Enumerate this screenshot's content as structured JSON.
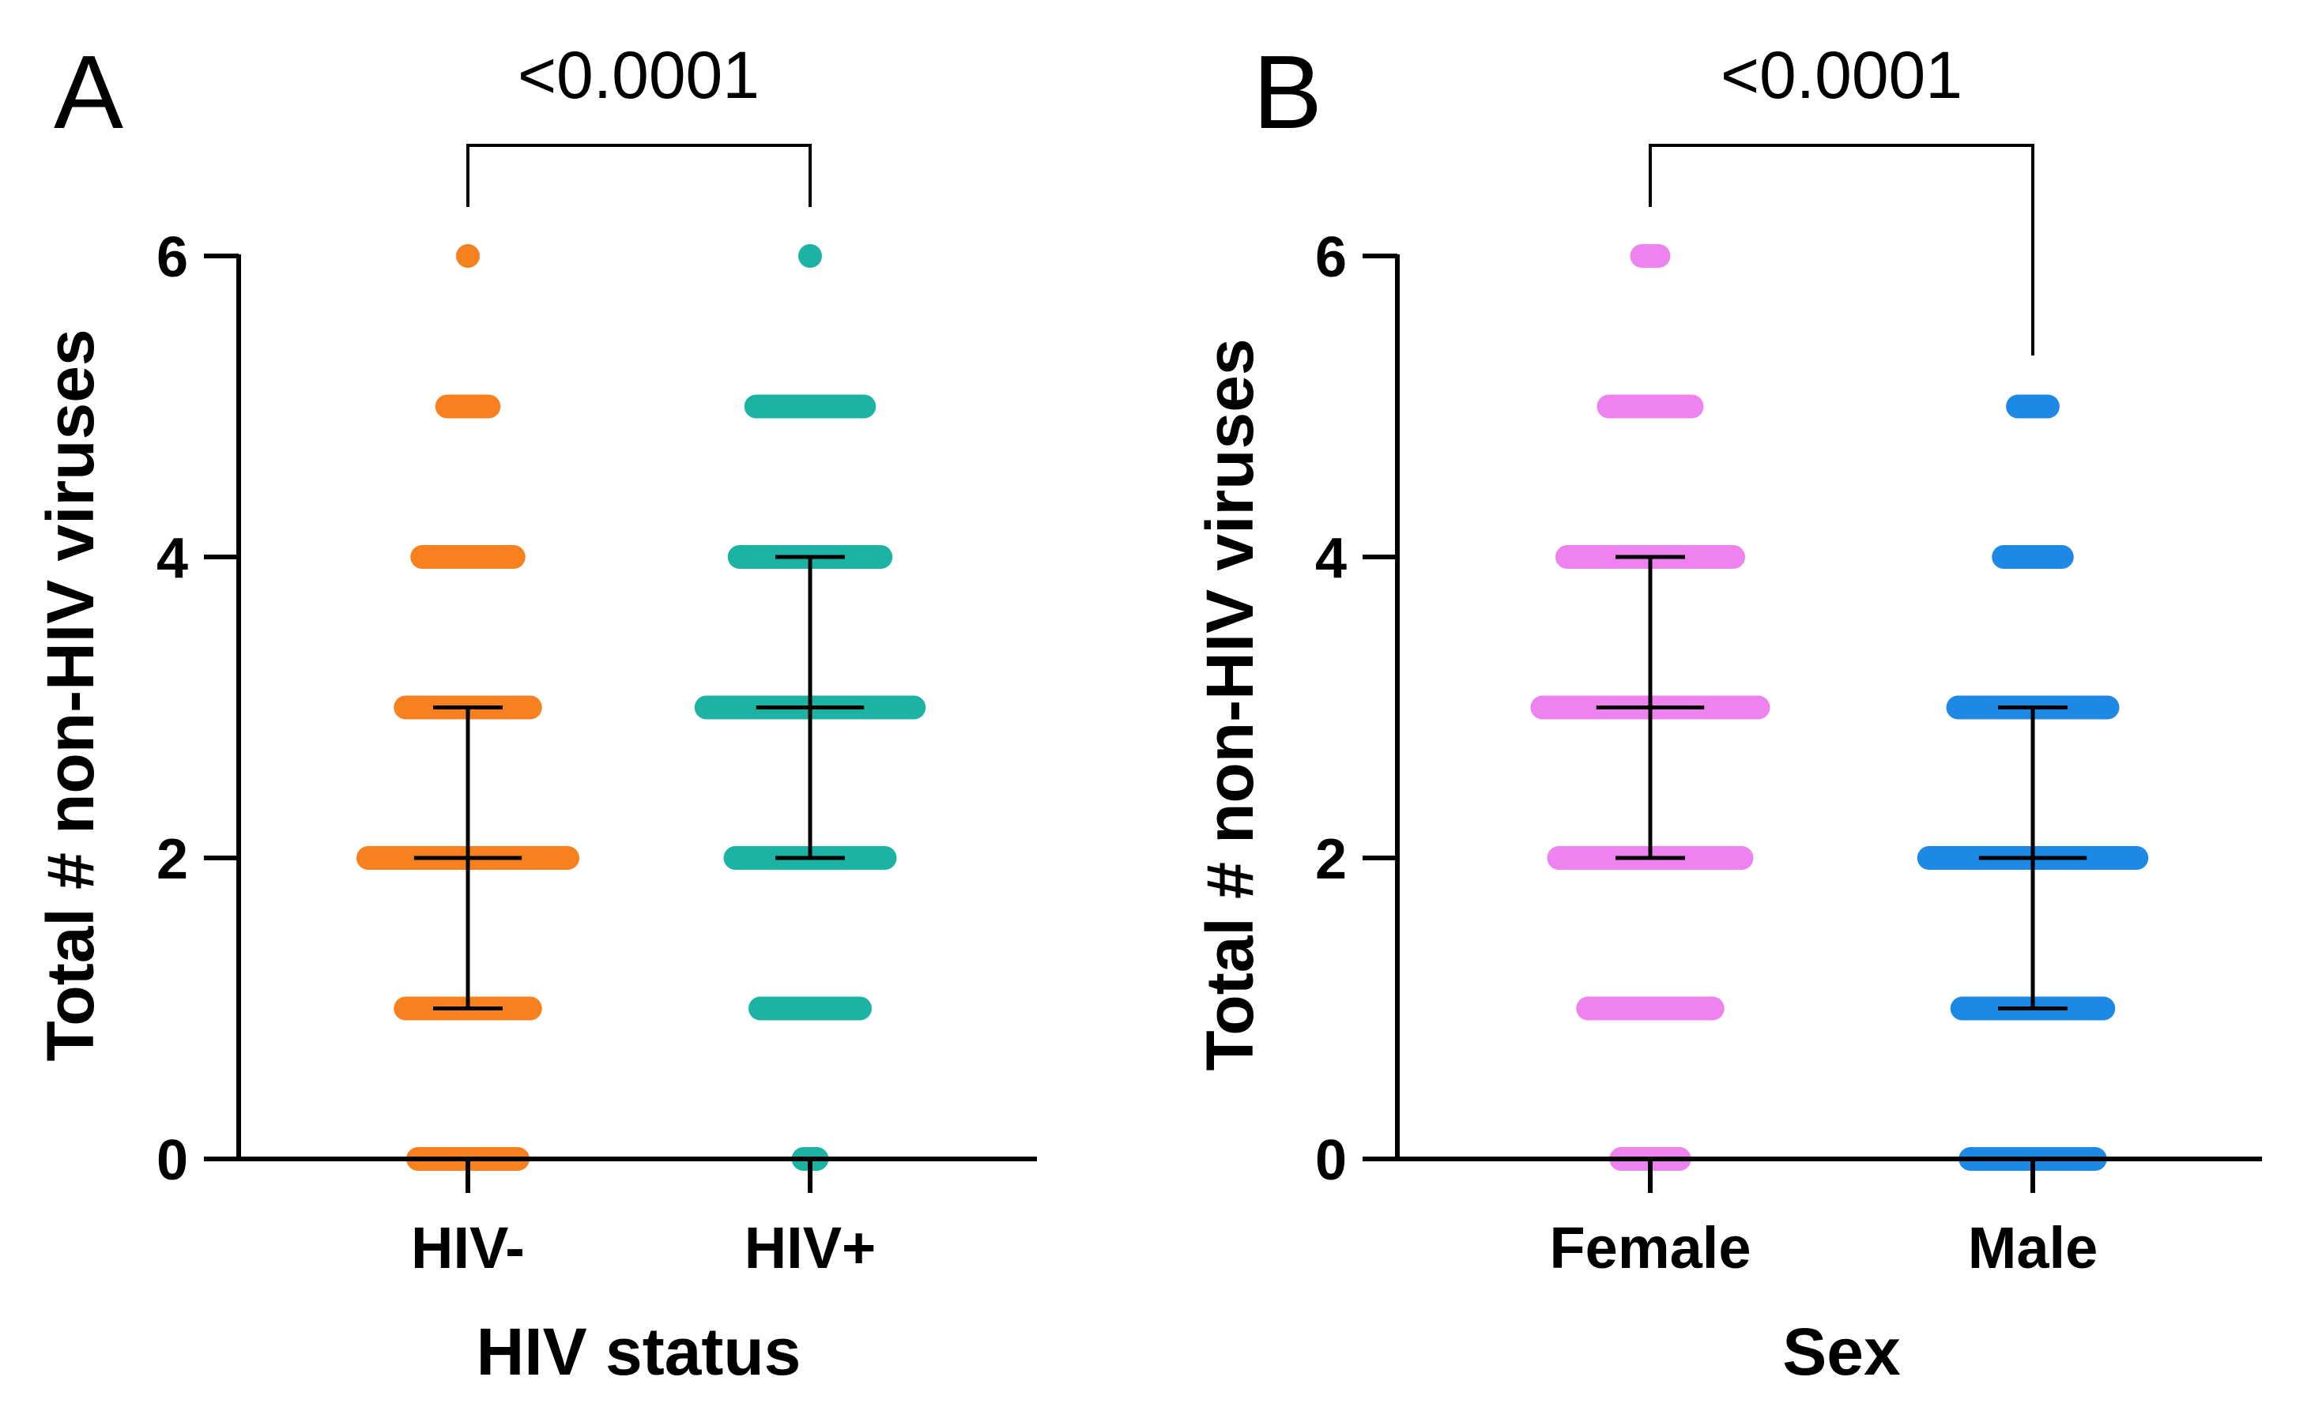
{
  "chart_data": [
    {
      "type": "scatter",
      "panel": "A",
      "xlabel": "HIV status",
      "ylabel": "Total # non-HIV viruses",
      "ylim": [
        0,
        6
      ],
      "yticks": [
        0,
        2,
        4,
        6
      ],
      "grid": false,
      "comparison": {
        "label": "<0.0001",
        "groups": [
          "HIV-",
          "HIV+"
        ]
      },
      "groups": [
        {
          "name": "HIV-",
          "color": "#F7801F",
          "median": 2,
          "q1": 1,
          "q3": 3,
          "levels": [
            {
              "y": 0,
              "spread": 0.6
            },
            {
              "y": 1,
              "spread": 0.75
            },
            {
              "y": 2,
              "spread": 1.2
            },
            {
              "y": 3,
              "spread": 0.75
            },
            {
              "y": 4,
              "spread": 0.55
            },
            {
              "y": 5,
              "spread": 0.25
            },
            {
              "y": 6,
              "spread": 0.0
            }
          ]
        },
        {
          "name": "HIV+",
          "color": "#1DB3A4",
          "median": 3,
          "q1": 2,
          "q3": 4,
          "levels": [
            {
              "y": 0,
              "spread": 0.08
            },
            {
              "y": 1,
              "spread": 0.6
            },
            {
              "y": 2,
              "spread": 0.9
            },
            {
              "y": 3,
              "spread": 1.25
            },
            {
              "y": 4,
              "spread": 0.85
            },
            {
              "y": 5,
              "spread": 0.65
            },
            {
              "y": 6,
              "spread": 0.0
            }
          ]
        }
      ]
    },
    {
      "type": "scatter",
      "panel": "B",
      "xlabel": "Sex",
      "ylabel": "Total # non-HIV viruses",
      "ylim": [
        0,
        6
      ],
      "yticks": [
        0,
        2,
        4,
        6
      ],
      "grid": false,
      "comparison": {
        "label": "<0.0001",
        "groups": [
          "Female",
          "Male"
        ]
      },
      "groups": [
        {
          "name": "Female",
          "color": "#EE82EE",
          "median": 3,
          "q1": 2,
          "q3": 4,
          "levels": [
            {
              "y": 0,
              "spread": 0.35
            },
            {
              "y": 1,
              "spread": 0.75
            },
            {
              "y": 2,
              "spread": 1.1
            },
            {
              "y": 3,
              "spread": 1.3
            },
            {
              "y": 4,
              "spread": 1.0
            },
            {
              "y": 5,
              "spread": 0.5
            },
            {
              "y": 6,
              "spread": 0.1
            }
          ]
        },
        {
          "name": "Male",
          "color": "#1E88E5",
          "median": 2,
          "q1": 1,
          "q3": 3,
          "levels": [
            {
              "y": 0,
              "spread": 0.75
            },
            {
              "y": 1,
              "spread": 0.85
            },
            {
              "y": 2,
              "spread": 1.25
            },
            {
              "y": 3,
              "spread": 0.9
            },
            {
              "y": 4,
              "spread": 0.35
            },
            {
              "y": 5,
              "spread": 0.18
            }
          ]
        }
      ]
    }
  ]
}
